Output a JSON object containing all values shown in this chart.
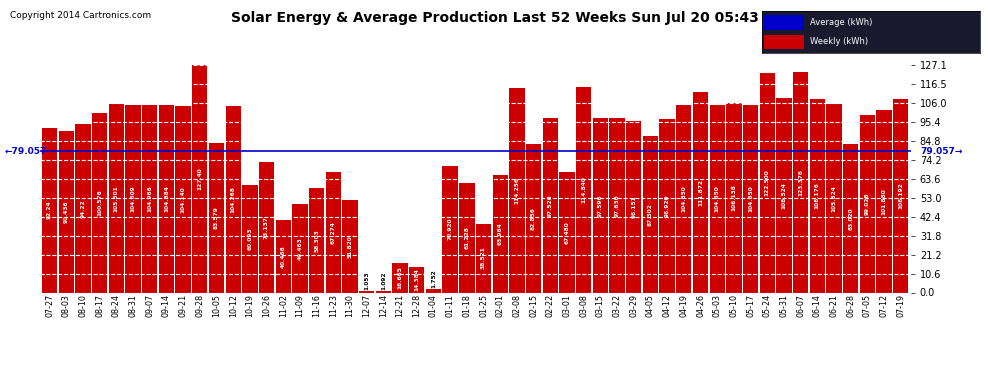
{
  "title": "Solar Energy & Average Production Last 52 Weeks Sun Jul 20 05:43",
  "copyright": "Copyright 2014 Cartronics.com",
  "average_label": "Average (kWh)",
  "weekly_label": "Weekly (kWh)",
  "average_value": 79.057,
  "bar_color": "#cc0000",
  "average_line_color": "#0000cc",
  "background_color": "#ffffff",
  "grid_color": "#aaaaaa",
  "ylim": [
    0,
    130
  ],
  "yticks": [
    0.0,
    10.6,
    21.2,
    31.8,
    42.4,
    53.0,
    63.6,
    74.2,
    84.8,
    95.4,
    106.0,
    116.5,
    127.1
  ],
  "categories": [
    "07-27",
    "08-03",
    "08-10",
    "08-17",
    "08-24",
    "08-31",
    "09-07",
    "09-14",
    "09-21",
    "09-28",
    "10-05",
    "10-12",
    "10-19",
    "10-26",
    "11-02",
    "11-09",
    "11-16",
    "11-23",
    "11-30",
    "12-07",
    "12-14",
    "12-21",
    "12-28",
    "01-04",
    "01-11",
    "01-18",
    "01-25",
    "02-01",
    "02-08",
    "02-15",
    "02-22",
    "03-01",
    "03-08",
    "03-15",
    "03-22",
    "03-29",
    "04-05",
    "04-12",
    "04-19",
    "04-26",
    "05-03",
    "05-10",
    "05-17",
    "05-24",
    "05-31",
    "06-07",
    "06-14",
    "06-21",
    "06-28",
    "07-05",
    "07-12",
    "07-19"
  ],
  "values": [
    92.24,
    90.436,
    94.22,
    100.576,
    105.301,
    104.609,
    104.966,
    104.884,
    104.14,
    127.4,
    83.579,
    104.268,
    60.093,
    73.137,
    40.468,
    49.463,
    58.303,
    67.274,
    51.82,
    1.053,
    1.092,
    16.665,
    14.384,
    1.752,
    70.92,
    61.228,
    38.521,
    65.964,
    114.256,
    82.856,
    97.528,
    67.48,
    114.84,
    97.596,
    97.63,
    96.151,
    87.302,
    96.92,
    104.85,
    111.872,
    104.65,
    106.138,
    104.65,
    122.5,
    108.524,
    123.376,
    108.176,
    105.324,
    83.02,
    99.028,
    101.88,
    108.192
  ],
  "bar_value_labels": [
    "92.24",
    "90.436",
    "94.22",
    "100.576",
    "105.301",
    "104.609",
    "104.966",
    "104.884",
    "104.140",
    "127.40",
    "83.579",
    "104.268",
    "60.093",
    "73.137",
    "40.468",
    "49.463",
    "58.303",
    "67.274",
    "51.820",
    "1.053",
    "1.092",
    "16.665",
    "14.384",
    "1.752",
    "70.920",
    "61.228",
    "38.521",
    "65.964",
    "114.256",
    "82.856",
    "97.528",
    "67.480",
    "114.840",
    "97.596",
    "97.630",
    "96.151",
    "87.302",
    "96.920",
    "104.850",
    "111.872",
    "104.650",
    "106.138",
    "104.650",
    "122.500",
    "108.524",
    "123.376",
    "108.176",
    "105.324",
    "83.020",
    "99.028",
    "101.880",
    "108.192"
  ],
  "avg_left_label": "79.057",
  "avg_right_label": "79.057"
}
